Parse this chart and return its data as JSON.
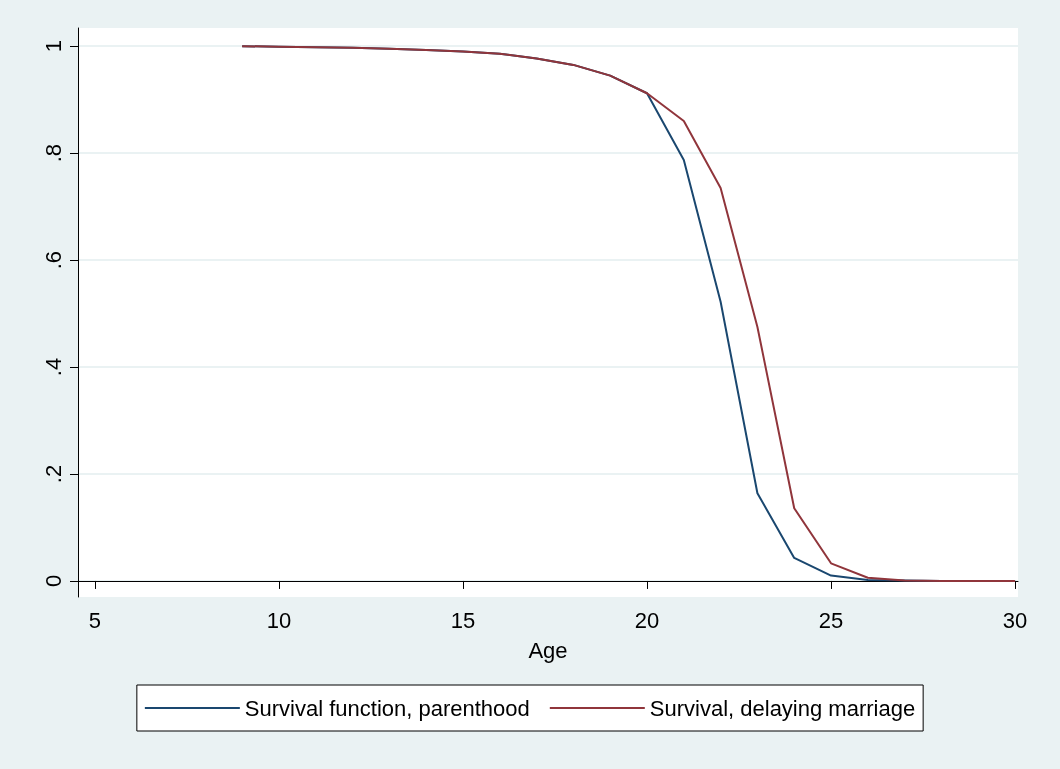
{
  "chart_data": {
    "type": "line",
    "xlabel": "Age",
    "x": [
      9,
      10,
      11,
      12,
      13,
      14,
      15,
      16,
      17,
      18,
      19,
      20,
      21,
      22,
      23,
      24,
      25,
      26,
      27,
      28,
      29,
      30
    ],
    "series": [
      {
        "name": "Survival function, parenthood",
        "color": "#1a476f",
        "values": [
          1.0,
          0.999,
          0.998,
          0.997,
          0.995,
          0.993,
          0.99,
          0.986,
          0.977,
          0.965,
          0.945,
          0.912,
          0.787,
          0.522,
          0.164,
          0.043,
          0.01,
          0.002,
          0.001,
          0,
          0,
          0
        ]
      },
      {
        "name": "Survival, delaying marriage",
        "color": "#90353b",
        "values": [
          1.0,
          0.999,
          0.998,
          0.997,
          0.995,
          0.993,
          0.99,
          0.986,
          0.977,
          0.965,
          0.945,
          0.912,
          0.86,
          0.735,
          0.475,
          0.136,
          0.033,
          0.006,
          0.001,
          0,
          0,
          0
        ]
      }
    ],
    "xlim": [
      4.54,
      30.08
    ],
    "xticks": [
      5,
      10,
      15,
      20,
      25,
      30
    ],
    "ylim": [
      -0.03,
      1.034
    ],
    "yticks": [
      {
        "value": 0,
        "label": "0"
      },
      {
        "value": 0.2,
        "label": ".2"
      },
      {
        "value": 0.4,
        "label": ".4"
      },
      {
        "value": 0.6,
        "label": ".6"
      },
      {
        "value": 0.8,
        "label": ".8"
      },
      {
        "value": 1,
        "label": "1"
      }
    ],
    "grid": "y",
    "legend": "bottom",
    "marker": "none",
    "line_style": "solid"
  }
}
